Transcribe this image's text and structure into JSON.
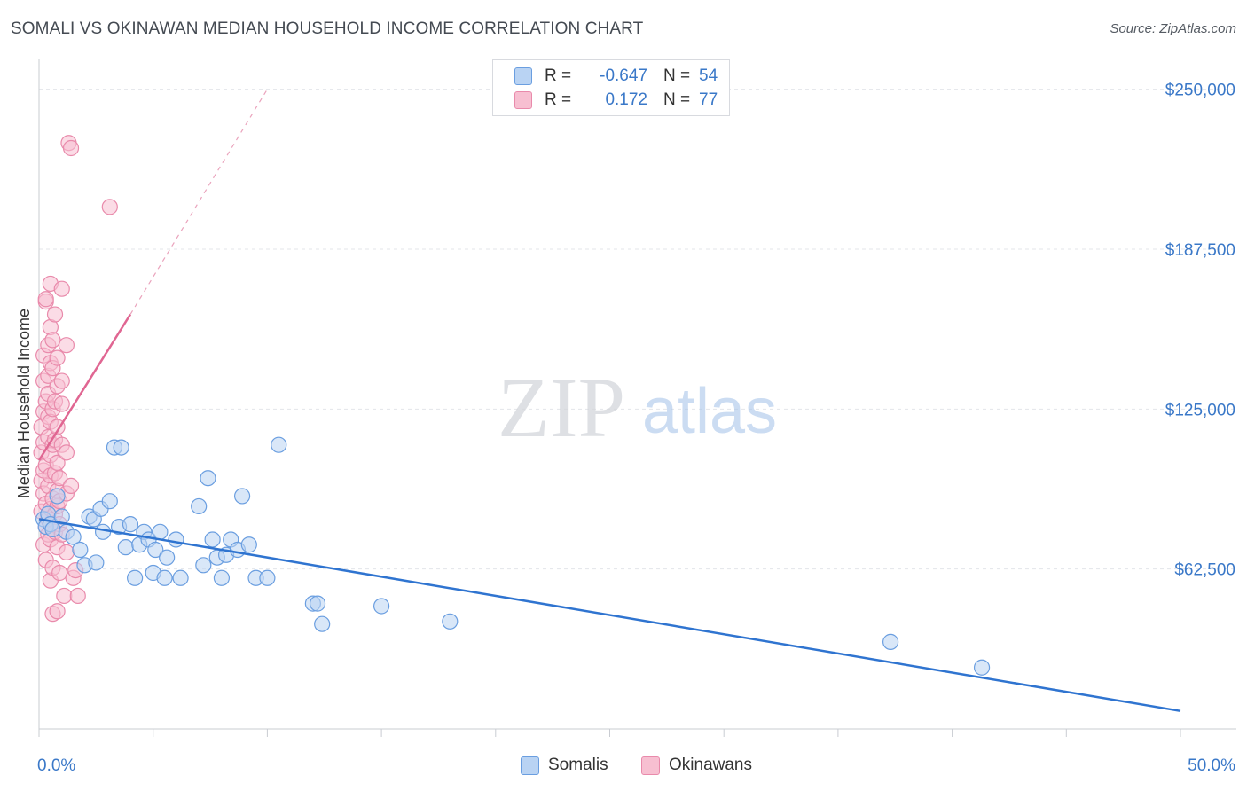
{
  "title": "SOMALI VS OKINAWAN MEDIAN HOUSEHOLD INCOME CORRELATION CHART",
  "source": "Source: ZipAtlas.com",
  "watermark": {
    "zip": "ZIP",
    "atlas": "atlas"
  },
  "colors": {
    "somali_fill": "#b9d3f3",
    "somali_stroke": "#6a9ee0",
    "somali_line": "#2f74d0",
    "okinawan_fill": "#f7bfd1",
    "okinawan_stroke": "#e98aab",
    "okinawan_line": "#e06692",
    "grid": "#e3e5e9",
    "tick_label": "#3a78c8"
  },
  "legend_top": {
    "rows": [
      {
        "r_label": "R =",
        "r_value": "-0.647",
        "n_label": "N =",
        "n_value": "54"
      },
      {
        "r_label": "R =",
        "r_value": "0.172",
        "n_label": "N =",
        "n_value": "77"
      }
    ]
  },
  "legend_bottom": {
    "somalis": "Somalis",
    "okinawans": "Okinawans"
  },
  "chart_data": {
    "type": "scatter",
    "title": "SOMALI VS OKINAWAN MEDIAN HOUSEHOLD INCOME CORRELATION CHART",
    "xlabel": "",
    "ylabel": "Median Household Income",
    "xlim": [
      0,
      50
    ],
    "ylim": [
      0,
      262000
    ],
    "x_tick_labels": [
      "0.0%",
      "50.0%"
    ],
    "y_ticks": [
      62500,
      125000,
      187500,
      250000
    ],
    "y_tick_labels": [
      "$62,500",
      "$125,000",
      "$187,500",
      "$250,000"
    ],
    "grid": true,
    "legend_position": "top-center",
    "series": [
      {
        "name": "Somalis",
        "points": [
          [
            0.2,
            82000
          ],
          [
            0.3,
            79000
          ],
          [
            0.4,
            84000
          ],
          [
            0.5,
            80000
          ],
          [
            0.6,
            78000
          ],
          [
            0.8,
            91000
          ],
          [
            1.0,
            83000
          ],
          [
            1.2,
            77000
          ],
          [
            1.5,
            75000
          ],
          [
            1.8,
            70000
          ],
          [
            2.0,
            64000
          ],
          [
            2.2,
            83000
          ],
          [
            2.4,
            82000
          ],
          [
            2.5,
            65000
          ],
          [
            2.7,
            86000
          ],
          [
            2.8,
            77000
          ],
          [
            3.1,
            89000
          ],
          [
            3.3,
            110000
          ],
          [
            3.5,
            79000
          ],
          [
            3.6,
            110000
          ],
          [
            3.8,
            71000
          ],
          [
            4.0,
            80000
          ],
          [
            4.2,
            59000
          ],
          [
            4.4,
            72000
          ],
          [
            4.6,
            77000
          ],
          [
            4.8,
            74000
          ],
          [
            5.0,
            61000
          ],
          [
            5.1,
            70000
          ],
          [
            5.3,
            77000
          ],
          [
            5.5,
            59000
          ],
          [
            5.6,
            67000
          ],
          [
            6.0,
            74000
          ],
          [
            6.2,
            59000
          ],
          [
            7.0,
            87000
          ],
          [
            7.2,
            64000
          ],
          [
            7.4,
            98000
          ],
          [
            7.6,
            74000
          ],
          [
            7.8,
            67000
          ],
          [
            8.0,
            59000
          ],
          [
            8.2,
            68000
          ],
          [
            8.4,
            74000
          ],
          [
            8.7,
            70000
          ],
          [
            8.9,
            91000
          ],
          [
            9.2,
            72000
          ],
          [
            9.5,
            59000
          ],
          [
            10.0,
            59000
          ],
          [
            10.5,
            111000
          ],
          [
            12.0,
            49000
          ],
          [
            12.2,
            49000
          ],
          [
            12.4,
            41000
          ],
          [
            15.0,
            48000
          ],
          [
            18.0,
            42000
          ],
          [
            37.3,
            34000
          ],
          [
            41.3,
            24000
          ]
        ],
        "trendline": {
          "x": [
            0,
            50
          ],
          "y": [
            82000,
            7000
          ]
        }
      },
      {
        "name": "Okinawans",
        "points": [
          [
            0.1,
            85000
          ],
          [
            0.1,
            97000
          ],
          [
            0.1,
            108000
          ],
          [
            0.1,
            118000
          ],
          [
            0.2,
            72000
          ],
          [
            0.2,
            92000
          ],
          [
            0.2,
            101000
          ],
          [
            0.2,
            112000
          ],
          [
            0.2,
            124000
          ],
          [
            0.2,
            136000
          ],
          [
            0.2,
            146000
          ],
          [
            0.3,
            66000
          ],
          [
            0.3,
            79000
          ],
          [
            0.3,
            88000
          ],
          [
            0.3,
            103000
          ],
          [
            0.3,
            128000
          ],
          [
            0.3,
            167000
          ],
          [
            0.3,
            168000
          ],
          [
            0.4,
            76000
          ],
          [
            0.4,
            82000
          ],
          [
            0.4,
            95000
          ],
          [
            0.4,
            114000
          ],
          [
            0.4,
            122000
          ],
          [
            0.4,
            131000
          ],
          [
            0.4,
            138000
          ],
          [
            0.4,
            150000
          ],
          [
            0.5,
            58000
          ],
          [
            0.5,
            74000
          ],
          [
            0.5,
            86000
          ],
          [
            0.5,
            99000
          ],
          [
            0.5,
            107000
          ],
          [
            0.5,
            120000
          ],
          [
            0.5,
            143000
          ],
          [
            0.5,
            157000
          ],
          [
            0.5,
            174000
          ],
          [
            0.6,
            45000
          ],
          [
            0.6,
            63000
          ],
          [
            0.6,
            90000
          ],
          [
            0.6,
            111000
          ],
          [
            0.6,
            125000
          ],
          [
            0.6,
            141000
          ],
          [
            0.6,
            152000
          ],
          [
            0.7,
            77000
          ],
          [
            0.7,
            84000
          ],
          [
            0.7,
            100000
          ],
          [
            0.7,
            113000
          ],
          [
            0.7,
            128000
          ],
          [
            0.7,
            162000
          ],
          [
            0.8,
            46000
          ],
          [
            0.8,
            71000
          ],
          [
            0.8,
            87000
          ],
          [
            0.8,
            93000
          ],
          [
            0.8,
            104000
          ],
          [
            0.8,
            118000
          ],
          [
            0.8,
            134000
          ],
          [
            0.8,
            145000
          ],
          [
            0.9,
            61000
          ],
          [
            0.9,
            80000
          ],
          [
            0.9,
            89000
          ],
          [
            0.9,
            98000
          ],
          [
            1.0,
            76000
          ],
          [
            1.0,
            111000
          ],
          [
            1.0,
            127000
          ],
          [
            1.0,
            136000
          ],
          [
            1.0,
            172000
          ],
          [
            1.1,
            52000
          ],
          [
            1.2,
            69000
          ],
          [
            1.2,
            92000
          ],
          [
            1.2,
            108000
          ],
          [
            1.2,
            150000
          ],
          [
            1.3,
            229000
          ],
          [
            1.4,
            227000
          ],
          [
            1.4,
            95000
          ],
          [
            1.5,
            59000
          ],
          [
            1.6,
            62000
          ],
          [
            1.7,
            52000
          ],
          [
            3.1,
            204000
          ]
        ],
        "trendline": {
          "x": [
            0,
            4.0
          ],
          "y": [
            105000,
            162000
          ]
        },
        "trendline_extension": {
          "x": [
            4.0,
            10.0
          ],
          "y": [
            162000,
            250000
          ]
        }
      }
    ]
  }
}
